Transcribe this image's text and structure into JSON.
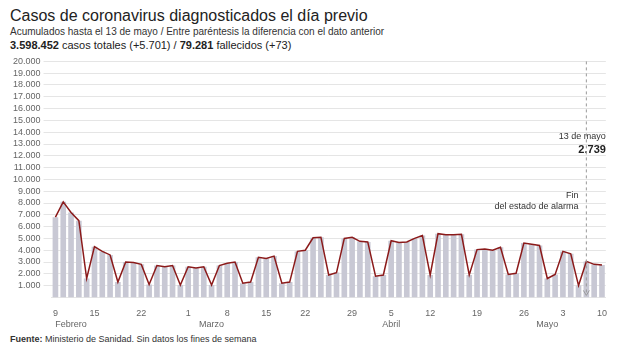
{
  "chart_data": {
    "type": "bar",
    "title": "Casos de coronavirus diagnosticados el día previo",
    "subtitle": "Acumulados hasta el 13 de mayo / Entre paréntesis la diferencia con el dato anterior",
    "stats": [
      "3.598.452",
      " casos totales (+5.701) / ",
      "79.281",
      " fallecidos (+73)"
    ],
    "footer": [
      "Fuente:",
      " Ministerio de Sanidad. Sin datos los fines de semana"
    ],
    "categories": [
      "9",
      null,
      null,
      null,
      null,
      "15",
      null,
      null,
      null,
      null,
      null,
      "22",
      null,
      null,
      null,
      null,
      null,
      "1",
      null,
      null,
      null,
      null,
      "8",
      null,
      null,
      null,
      null,
      "15",
      null,
      null,
      null,
      null,
      "22",
      null,
      null,
      null,
      null,
      null,
      "29",
      null,
      null,
      null,
      null,
      "5",
      null,
      null,
      null,
      null,
      "12",
      null,
      null,
      null,
      null,
      null,
      "19",
      null,
      null,
      null,
      null,
      null,
      "26",
      null,
      null,
      null,
      null,
      "3",
      null,
      null,
      null,
      null,
      "10"
    ],
    "months": [
      null,
      null,
      "Febrero",
      null,
      null,
      null,
      null,
      null,
      null,
      null,
      null,
      null,
      null,
      null,
      null,
      null,
      null,
      null,
      null,
      null,
      "Marzo",
      null,
      null,
      null,
      null,
      null,
      null,
      null,
      null,
      null,
      null,
      null,
      null,
      null,
      null,
      null,
      null,
      null,
      null,
      null,
      null,
      null,
      null,
      "Abril",
      null,
      null,
      null,
      null,
      null,
      null,
      null,
      null,
      null,
      null,
      null,
      null,
      null,
      null,
      null,
      null,
      null,
      null,
      null,
      "Mayo",
      null,
      null,
      null,
      null,
      null,
      null,
      null
    ],
    "series": [
      {
        "type": "bar",
        "color": "#c8c8d4",
        "values": [
          6800,
          8100,
          7200,
          6500,
          1600,
          4300,
          3900,
          3600,
          1300,
          3000,
          2950,
          2800,
          1100,
          2700,
          2600,
          2700,
          1050,
          2600,
          2500,
          2600,
          1050,
          2700,
          2900,
          3000,
          1200,
          1300,
          3400,
          3300,
          3500,
          1200,
          1300,
          3900,
          4000,
          5050,
          5100,
          1900,
          2100,
          5000,
          5100,
          4750,
          4700,
          1800,
          1900,
          4800,
          4650,
          4700,
          5000,
          5250,
          1900,
          5400,
          5300,
          5300,
          5350,
          1900,
          4050,
          4100,
          4000,
          4250,
          1950,
          2050,
          4600,
          4500,
          4400,
          1600,
          1950,
          3900,
          3700,
          1000,
          3050,
          2800,
          2739
        ]
      },
      {
        "type": "line",
        "color": "#8b1a1a",
        "values": [
          6800,
          8100,
          7200,
          6500,
          1600,
          4300,
          3900,
          3600,
          1300,
          3000,
          2950,
          2800,
          1100,
          2700,
          2600,
          2700,
          1050,
          2600,
          2500,
          2600,
          1050,
          2700,
          2900,
          3000,
          1200,
          1300,
          3400,
          3300,
          3500,
          1200,
          1300,
          3900,
          4000,
          5050,
          5100,
          1900,
          2100,
          5000,
          5100,
          4750,
          4700,
          1800,
          1900,
          4800,
          4650,
          4700,
          5000,
          5250,
          1900,
          5400,
          5300,
          5300,
          5350,
          1900,
          4050,
          4100,
          4000,
          4250,
          1950,
          2050,
          4600,
          4500,
          4400,
          1600,
          1950,
          3900,
          3700,
          1000,
          3050,
          2800,
          2739
        ]
      }
    ],
    "ylim": [
      0,
      20000
    ],
    "yticks": [
      {
        "value": 1000,
        "label": "1.000"
      },
      {
        "value": 2000,
        "label": "2.000"
      },
      {
        "value": 3000,
        "label": "3.000"
      },
      {
        "value": 4000,
        "label": "4.000"
      },
      {
        "value": 5000,
        "label": "5.000"
      },
      {
        "value": 6000,
        "label": "6.000"
      },
      {
        "value": 7000,
        "label": "7.000"
      },
      {
        "value": 8000,
        "label": "8.000"
      },
      {
        "value": 9000,
        "label": "9.000"
      },
      {
        "value": 10000,
        "label": "10.000"
      },
      {
        "value": 11000,
        "label": "11.000"
      },
      {
        "value": 12000,
        "label": "12.000"
      },
      {
        "value": 13000,
        "label": "13.000"
      },
      {
        "value": 14000,
        "label": "14.000"
      },
      {
        "value": 15000,
        "label": "15.000"
      },
      {
        "value": 16000,
        "label": "16.000"
      },
      {
        "value": 17000,
        "label": "17.000"
      },
      {
        "value": 18000,
        "label": "18.000"
      },
      {
        "value": 19000,
        "label": "19.000"
      },
      {
        "value": 20000,
        "label": "20.000"
      }
    ],
    "grid": true,
    "annotations": [
      {
        "text": "13 de mayo",
        "x": 70
      },
      {
        "text": "2.739",
        "x": 70
      },
      {
        "text": "Fin\ndel estado de alarma",
        "x": 68,
        "type": "vline"
      }
    ]
  }
}
